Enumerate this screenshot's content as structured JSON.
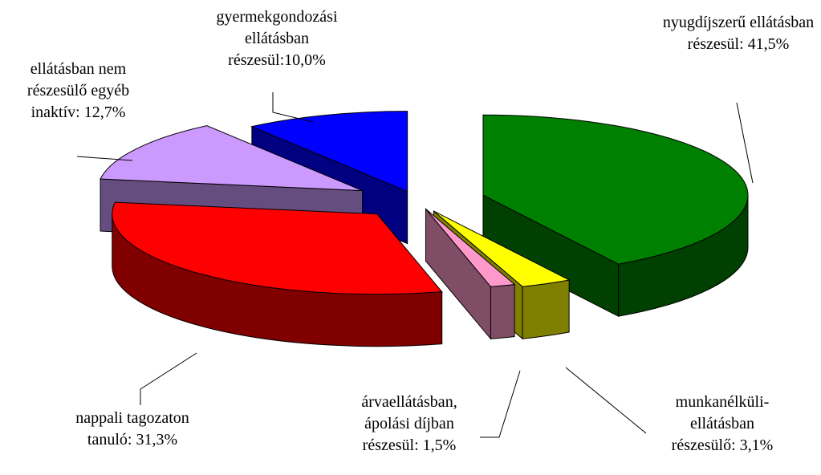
{
  "chart_data": {
    "type": "pie",
    "categories": [
      "nyugdíjszerű ellátásban részesül:",
      "munkanélküli-ellátásban részesülő:",
      "árvaellátásban, ápolási díjban részesül:",
      "nappali tagozaton tanuló:",
      "ellátásban nem részesülő egyéb inaktív:",
      "gyermekgondozási ellátásban részesül:"
    ],
    "values": [
      41.5,
      3.1,
      1.5,
      31.3,
      12.7,
      10.0
    ],
    "value_labels": [
      "41,5%",
      "3,1%",
      "1,5%",
      "31,3%",
      "12,7%",
      "10,0%"
    ],
    "colors": [
      "#008000",
      "#ffff00",
      "#ff99cc",
      "#ff0000",
      "#cc99ff",
      "#0000ff"
    ]
  }
}
